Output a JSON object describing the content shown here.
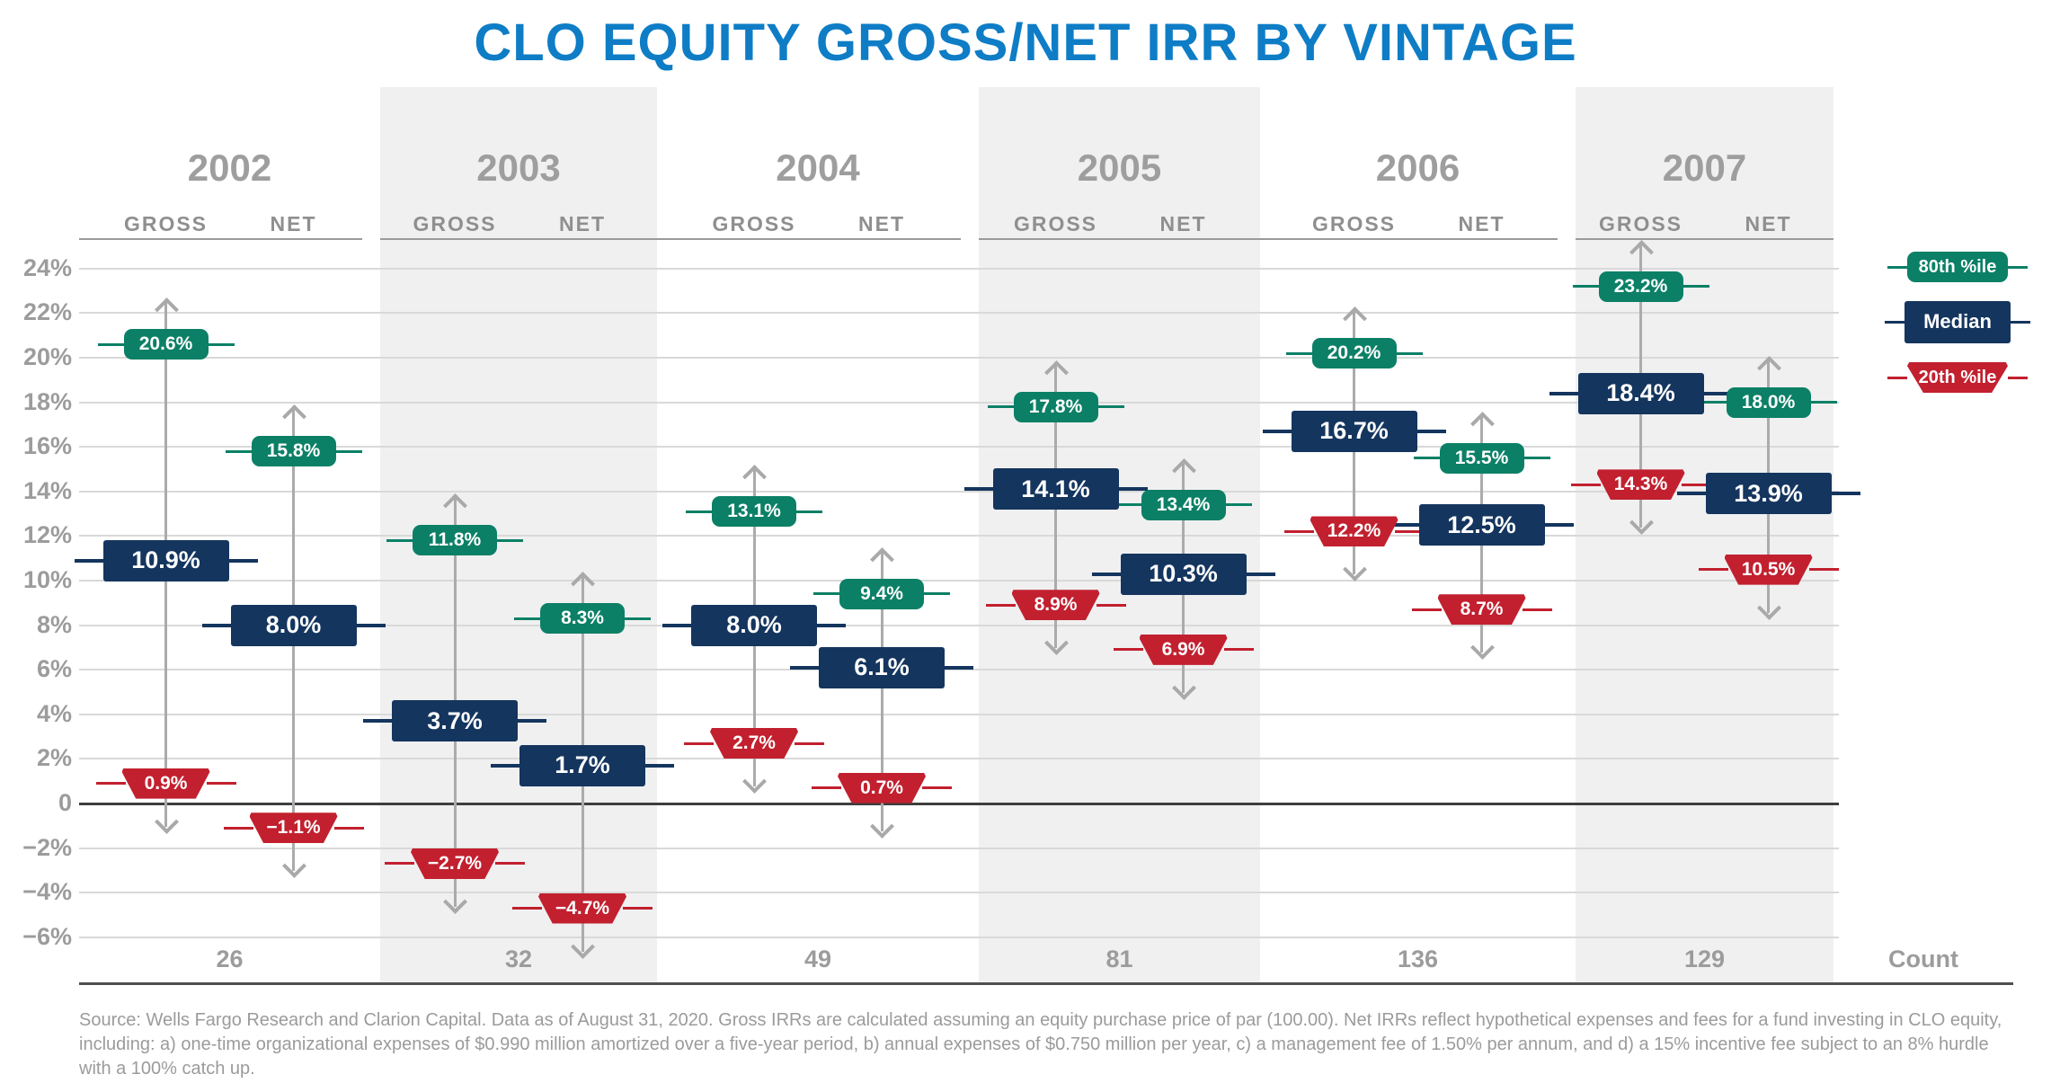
{
  "title": "CLO EQUITY GROSS/NET IRR BY VINTAGE",
  "source_note": "Source: Wells Fargo Research and Clarion Capital. Data as of August 31, 2020. Gross IRRs are calculated assuming an equity purchase price of par (100.00). Net IRRs reflect hypothetical expenses and fees for a fund investing in CLO equity, including: a) one-time organizational expenses of $0.990 million amortized over a five-year period, b) annual expenses of $0.750 million per year, c) a management fee of 1.50% per annum, and d) a 15% incentive fee subject to an 8% hurdle with a 100% catch up.",
  "colors": {
    "title_blue": "#0e7dc6",
    "green_80th": "#0b8066",
    "navy_median": "#14355e",
    "red_20th": "#c2202f",
    "band_gray": "#f0f0f1"
  },
  "legend": [
    {
      "key": "p80",
      "label": "80th %ile",
      "color": "#0b8066"
    },
    {
      "key": "median",
      "label": "Median",
      "color": "#14355e"
    },
    {
      "key": "p20",
      "label": "20th %ile",
      "color": "#c2202f"
    }
  ],
  "chart_data": {
    "type": "bar",
    "subtype": "percentile-range-markers",
    "title": "CLO EQUITY GROSS/NET IRR BY VINTAGE",
    "categories": [
      "2002",
      "2003",
      "2004",
      "2005",
      "2006",
      "2007"
    ],
    "sub_columns": [
      "GROSS",
      "NET"
    ],
    "y_axis": {
      "min": -6,
      "max": 24,
      "step": 2,
      "unit": "%",
      "zero_label": "0",
      "grid": true
    },
    "legend_position": "top-right",
    "series": [
      {
        "name": "80th %ile",
        "column": "GROSS",
        "values": [
          20.6,
          11.8,
          13.1,
          17.8,
          20.2,
          23.2
        ]
      },
      {
        "name": "80th %ile",
        "column": "NET",
        "values": [
          15.8,
          8.3,
          9.4,
          13.4,
          15.5,
          18.0
        ]
      },
      {
        "name": "Median",
        "column": "GROSS",
        "values": [
          10.9,
          3.7,
          8.0,
          14.1,
          16.7,
          18.4
        ]
      },
      {
        "name": "Median",
        "column": "NET",
        "values": [
          8.0,
          1.7,
          6.1,
          10.3,
          12.5,
          13.9
        ]
      },
      {
        "name": "20th %ile",
        "column": "GROSS",
        "values": [
          0.9,
          -2.7,
          2.7,
          8.9,
          12.2,
          14.3
        ]
      },
      {
        "name": "20th %ile",
        "column": "NET",
        "values": [
          -1.1,
          -4.7,
          0.7,
          6.9,
          8.7,
          10.5
        ]
      }
    ],
    "groups": [
      {
        "year": "2002",
        "count": "26",
        "gross": {
          "p80": 20.6,
          "median": 10.9,
          "p20": 0.9
        },
        "net": {
          "p80": 15.8,
          "median": 8.0,
          "p20": -1.1
        }
      },
      {
        "year": "2003",
        "count": "32",
        "gross": {
          "p80": 11.8,
          "median": 3.7,
          "p20": -2.7
        },
        "net": {
          "p80": 8.3,
          "median": 1.7,
          "p20": -4.7
        }
      },
      {
        "year": "2004",
        "count": "49",
        "gross": {
          "p80": 13.1,
          "median": 8.0,
          "p20": 2.7
        },
        "net": {
          "p80": 9.4,
          "median": 6.1,
          "p20": 0.7
        }
      },
      {
        "year": "2005",
        "count": "81",
        "gross": {
          "p80": 17.8,
          "median": 14.1,
          "p20": 8.9
        },
        "net": {
          "p80": 13.4,
          "median": 10.3,
          "p20": 6.9
        }
      },
      {
        "year": "2006",
        "count": "136",
        "gross": {
          "p80": 20.2,
          "median": 16.7,
          "p20": 12.2
        },
        "net": {
          "p80": 15.5,
          "median": 12.5,
          "p20": 8.7
        }
      },
      {
        "year": "2007",
        "count": "129",
        "gross": {
          "p80": 23.2,
          "median": 18.4,
          "p20": 14.3
        },
        "net": {
          "p80": 18.0,
          "median": 13.9,
          "p20": 10.5
        }
      }
    ],
    "counts": {
      "label": "Count",
      "values": [
        "26",
        "32",
        "49",
        "81",
        "136",
        "129"
      ]
    }
  }
}
